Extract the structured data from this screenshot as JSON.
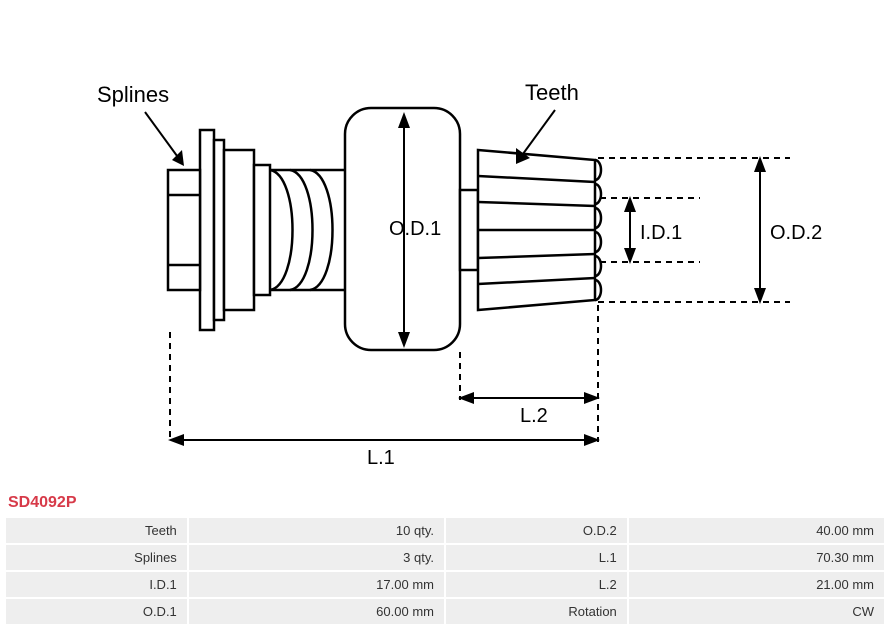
{
  "part_number": "SD4092P",
  "diagram": {
    "labels": {
      "splines": "Splines",
      "teeth": "Teeth",
      "od1": "O.D.1",
      "od2": "O.D.2",
      "id1": "I.D.1",
      "l1": "L.1",
      "l2": "L.2"
    },
    "stroke_color": "#000000",
    "stroke_width": 2,
    "dash": "6,5",
    "bg": "#ffffff"
  },
  "spec_rows": [
    {
      "k1": "Teeth",
      "v1": "10 qty.",
      "k2": "O.D.2",
      "v2": "40.00 mm"
    },
    {
      "k1": "Splines",
      "v1": "3 qty.",
      "k2": "L.1",
      "v2": "70.30 mm"
    },
    {
      "k1": "I.D.1",
      "v1": "17.00 mm",
      "k2": "L.2",
      "v2": "21.00 mm"
    },
    {
      "k1": "O.D.1",
      "v1": "60.00 mm",
      "k2": "Rotation",
      "v2": "CW"
    }
  ]
}
